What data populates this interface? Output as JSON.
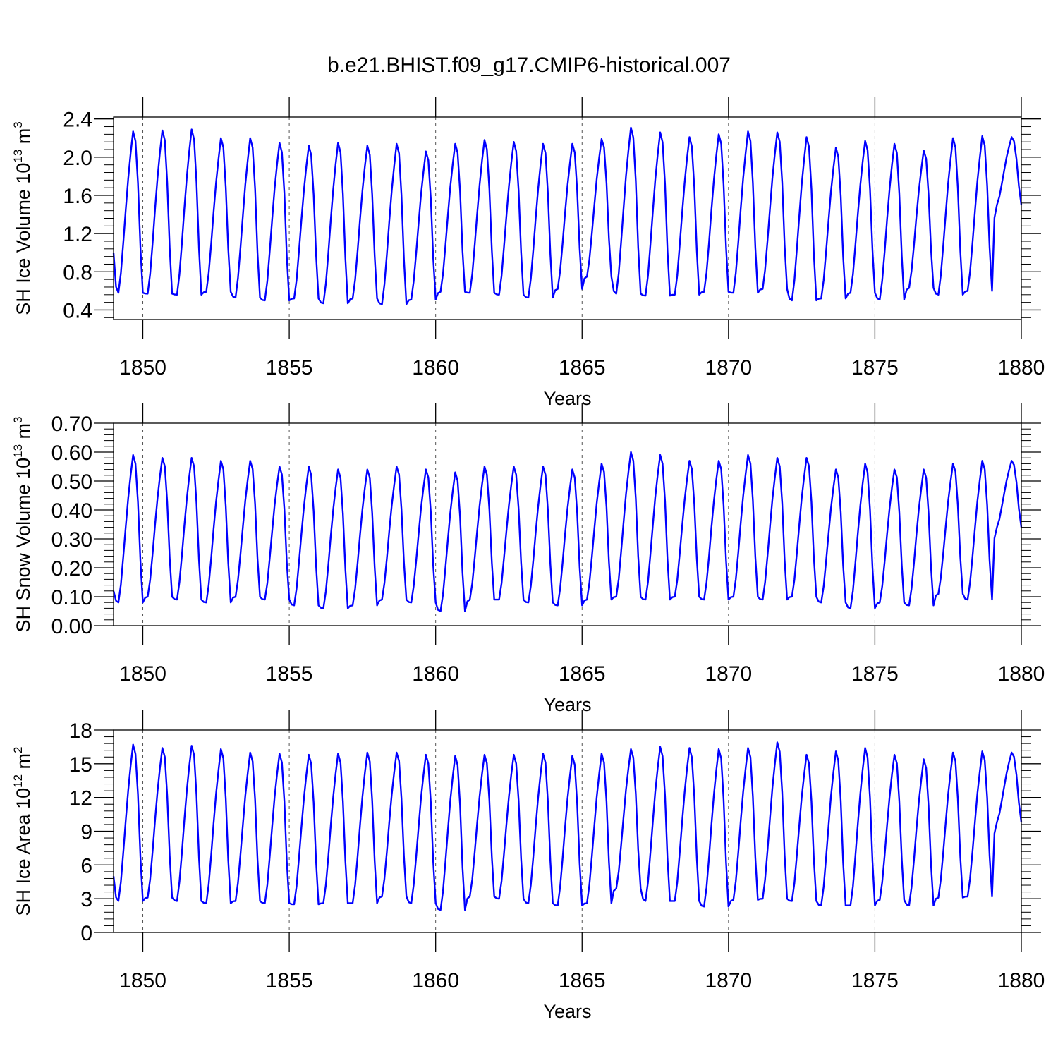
{
  "figure": {
    "title": "b.e21.BHIST.f09_g17.CMIP6-historical.007"
  },
  "style": {
    "line_color": "#0000ff",
    "axis_color": "#000000",
    "grid_color": "#555555"
  },
  "chart_data": [
    {
      "type": "line",
      "title": "",
      "ylabel_main": "SH Ice Volume 10",
      "ylabel_exp": "13",
      "ylabel_unit": " m",
      "ylabel_unit_exp": "3",
      "xlabel": "Years",
      "xlim": [
        1849.0,
        1880.0
      ],
      "ylim": [
        0.3,
        2.42
      ],
      "yticks": [
        0.4,
        0.8,
        1.2,
        1.6,
        2.0,
        2.4
      ],
      "ytick_labels": [
        "0.4",
        "0.8",
        "1.2",
        "1.6",
        "2.0",
        "2.4"
      ],
      "xticks": [
        1850,
        1855,
        1860,
        1865,
        1870,
        1875,
        1880
      ],
      "xtick_labels": [
        "1850",
        "1855",
        "1860",
        "1865",
        "1870",
        "1875",
        "1880"
      ],
      "grid": "vertical dashed at 5-year ticks",
      "series": [
        {
          "min_start": 1.0,
          "annual_max": [
            2.27,
            2.28,
            2.29,
            2.2,
            2.2,
            2.15,
            2.12,
            2.15,
            2.12,
            2.14,
            2.06,
            2.14,
            2.18,
            2.16,
            2.14,
            2.14,
            2.19,
            2.31,
            2.26,
            2.21,
            2.24,
            2.27,
            2.26,
            2.21,
            2.1,
            2.17,
            2.14,
            2.07,
            2.2,
            2.22,
            2.21
          ],
          "annual_min": [
            0.58,
            0.57,
            0.56,
            0.59,
            0.53,
            0.5,
            0.52,
            0.47,
            0.52,
            0.46,
            0.51,
            0.59,
            0.58,
            0.56,
            0.53,
            0.62,
            0.75,
            0.57,
            0.55,
            0.56,
            0.59,
            0.58,
            0.62,
            0.5,
            0.52,
            0.58,
            0.51,
            0.63,
            0.56,
            0.6,
            1.5
          ]
        }
      ]
    },
    {
      "type": "line",
      "title": "",
      "ylabel_main": "SH Snow Volume 10",
      "ylabel_exp": "13",
      "ylabel_unit": " m",
      "ylabel_unit_exp": "3",
      "xlabel": "Years",
      "xlim": [
        1849.0,
        1880.0
      ],
      "ylim": [
        0.0,
        0.7
      ],
      "yticks": [
        0.0,
        0.1,
        0.2,
        0.3,
        0.4,
        0.5,
        0.6,
        0.7
      ],
      "ytick_labels": [
        "0.00",
        "0.10",
        "0.20",
        "0.30",
        "0.40",
        "0.50",
        "0.60",
        "0.70"
      ],
      "xticks": [
        1850,
        1855,
        1860,
        1865,
        1870,
        1875,
        1880
      ],
      "xtick_labels": [
        "1850",
        "1855",
        "1860",
        "1865",
        "1870",
        "1875",
        "1880"
      ],
      "grid": "vertical dashed at 5-year ticks",
      "series": [
        {
          "min_start": 0.12,
          "annual_max": [
            0.59,
            0.58,
            0.58,
            0.57,
            0.57,
            0.55,
            0.55,
            0.54,
            0.54,
            0.55,
            0.54,
            0.53,
            0.55,
            0.55,
            0.55,
            0.54,
            0.56,
            0.6,
            0.59,
            0.57,
            0.57,
            0.59,
            0.58,
            0.58,
            0.54,
            0.56,
            0.54,
            0.54,
            0.56,
            0.57,
            0.57
          ],
          "annual_min": [
            0.08,
            0.1,
            0.09,
            0.08,
            0.1,
            0.09,
            0.07,
            0.06,
            0.07,
            0.09,
            0.08,
            0.05,
            0.09,
            0.09,
            0.08,
            0.07,
            0.09,
            0.1,
            0.09,
            0.1,
            0.09,
            0.1,
            0.09,
            0.1,
            0.08,
            0.06,
            0.08,
            0.07,
            0.11,
            0.09,
            0.34
          ]
        }
      ]
    },
    {
      "type": "line",
      "title": "",
      "ylabel_main": "SH Ice Area 10",
      "ylabel_exp": "12",
      "ylabel_unit": " m",
      "ylabel_unit_exp": "2",
      "xlabel": "Years",
      "xlim": [
        1849.0,
        1880.0
      ],
      "ylim": [
        0,
        18
      ],
      "yticks": [
        0,
        3,
        6,
        9,
        12,
        15,
        18
      ],
      "ytick_labels": [
        "0",
        "3",
        "6",
        "9",
        "12",
        "15",
        "18"
      ],
      "xticks": [
        1850,
        1855,
        1860,
        1865,
        1870,
        1875,
        1880
      ],
      "xtick_labels": [
        "1850",
        "1855",
        "1860",
        "1865",
        "1870",
        "1875",
        "1880"
      ],
      "grid": "vertical dashed at 5-year ticks",
      "series": [
        {
          "min_start": 5.0,
          "annual_max": [
            16.7,
            16.4,
            16.6,
            16.3,
            16.0,
            15.9,
            15.8,
            15.9,
            16.0,
            16.0,
            15.8,
            15.7,
            15.8,
            15.8,
            15.9,
            15.7,
            15.9,
            16.3,
            16.5,
            16.4,
            16.3,
            16.4,
            16.9,
            15.8,
            16.1,
            16.4,
            15.8,
            15.4,
            16.0,
            16.1,
            16.0
          ],
          "annual_min": [
            2.8,
            3.1,
            2.8,
            2.6,
            2.8,
            2.6,
            2.5,
            2.6,
            2.6,
            3.2,
            2.6,
            2.0,
            3.2,
            3.0,
            2.6,
            2.4,
            2.6,
            3.9,
            2.8,
            2.8,
            2.3,
            2.9,
            3.0,
            2.8,
            2.4,
            2.4,
            2.9,
            2.4,
            3.1,
            3.2,
            9.8
          ]
        }
      ]
    }
  ]
}
